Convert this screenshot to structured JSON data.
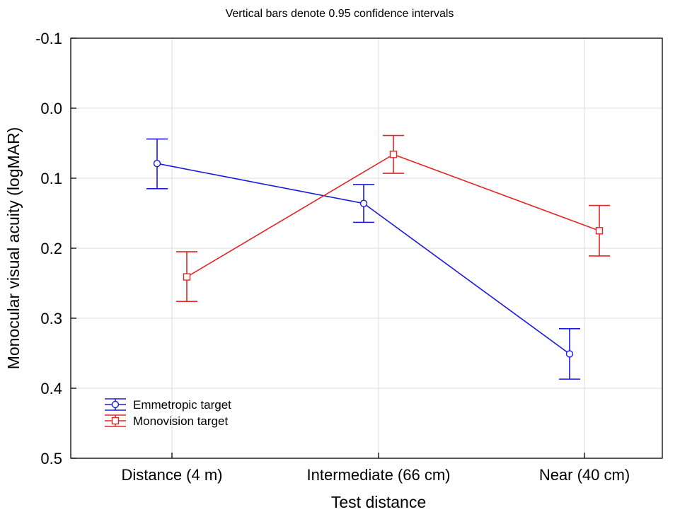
{
  "chart_data": {
    "type": "line",
    "subtitle": "Vertical bars denote 0.95 confidence intervals",
    "xlabel": "Test distance",
    "ylabel": "Monocular visual acuity (logMAR)",
    "categories": [
      "Distance (4 m)",
      "Intermediate (66 cm)",
      "Near (40 cm)"
    ],
    "ylim": [
      -0.1,
      0.5
    ],
    "y_inverted": true,
    "yticks": [
      "-0.1",
      "0.0",
      "0.1",
      "0.2",
      "0.3",
      "0.4",
      "0.5"
    ],
    "grid": true,
    "legend_position": "bottom-left",
    "series": [
      {
        "name": "Emmetropic target",
        "color": "#1a1adf",
        "marker": "circle",
        "values": [
          0.079,
          0.136,
          0.351
        ],
        "ci_low": [
          0.044,
          0.109,
          0.315
        ],
        "ci_high": [
          0.115,
          0.163,
          0.387
        ]
      },
      {
        "name": "Monovision target",
        "color": "#e52525",
        "marker": "square",
        "values": [
          0.241,
          0.066,
          0.175
        ],
        "ci_low": [
          0.205,
          0.039,
          0.139
        ],
        "ci_high": [
          0.276,
          0.093,
          0.211
        ]
      }
    ]
  }
}
